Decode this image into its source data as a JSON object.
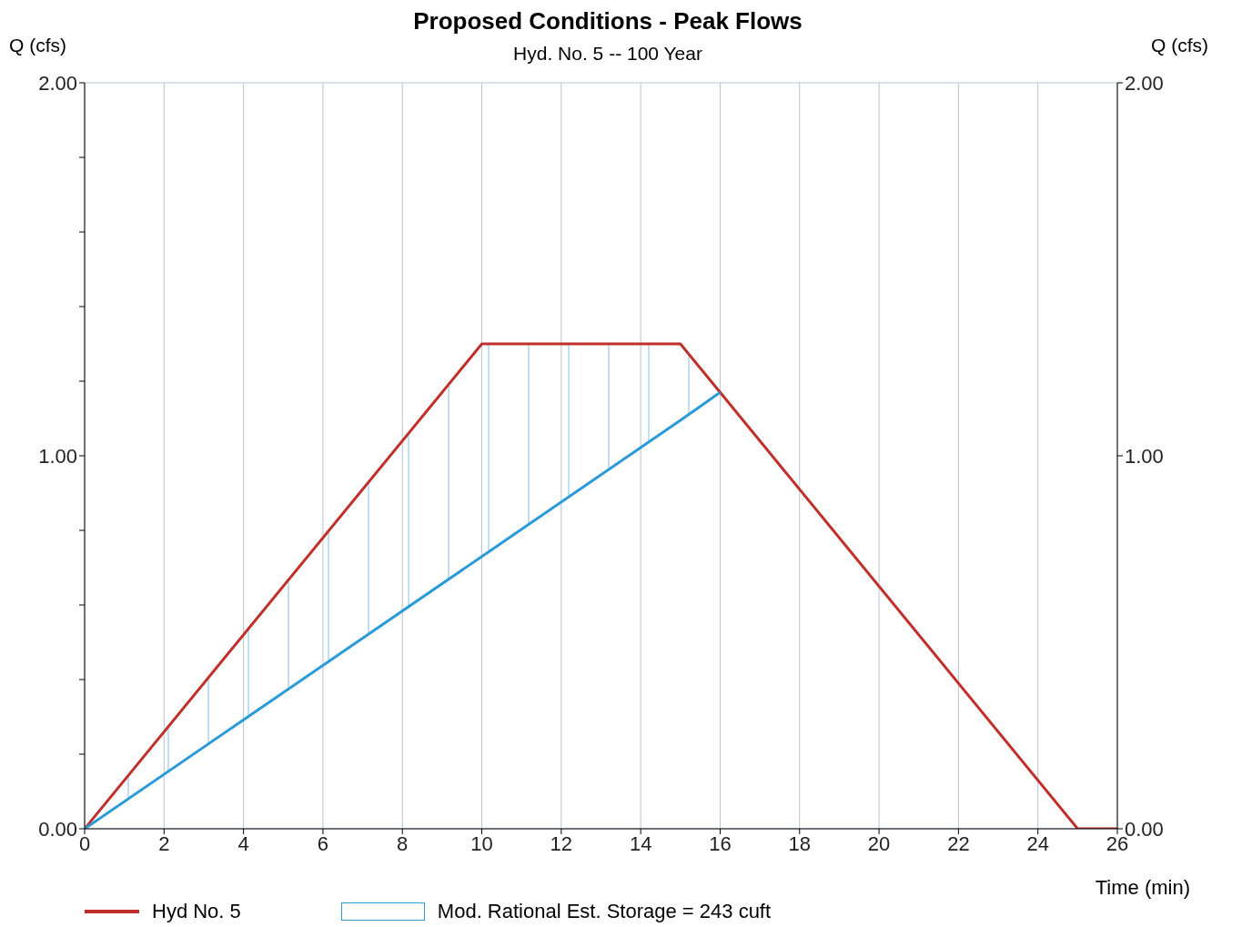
{
  "chart_data": {
    "type": "line",
    "title": "Proposed Conditions - Peak Flows",
    "subtitle": "Hyd. No. 5 -- 100 Year",
    "xlabel": "Time (min)",
    "ylabel": "Q (cfs)",
    "y2label": "Q (cfs)",
    "xlim": [
      0,
      26
    ],
    "xticks": [
      0,
      2,
      4,
      6,
      8,
      10,
      12,
      14,
      16,
      18,
      20,
      22,
      24,
      26
    ],
    "ylim": [
      0,
      2
    ],
    "yticks": [
      {
        "value": 0,
        "label": "0.00"
      },
      {
        "value": 0.2,
        "label": null
      },
      {
        "value": 0.4,
        "label": null
      },
      {
        "value": 0.6,
        "label": null
      },
      {
        "value": 0.8,
        "label": null
      },
      {
        "value": 1,
        "label": "1.00"
      },
      {
        "value": 1.2,
        "label": null
      },
      {
        "value": 1.4,
        "label": null
      },
      {
        "value": 1.6,
        "label": null
      },
      {
        "value": 1.8,
        "label": null
      },
      {
        "value": 2,
        "label": "2.00"
      }
    ],
    "y2lim": [
      0,
      2
    ],
    "y2ticks": [
      {
        "value": 0,
        "label": "0.00"
      },
      {
        "value": 1,
        "label": "1.00"
      },
      {
        "value": 2,
        "label": "2.00"
      }
    ],
    "grid": true,
    "legend": "bottom",
    "marker": "none",
    "line_style": "solid",
    "series": [
      {
        "name": "Hyd No. 5",
        "color": "#c0302b",
        "x": [
          0,
          10,
          15,
          16,
          25,
          26
        ],
        "values": [
          0,
          1.3,
          1.3,
          1.17,
          0,
          0
        ]
      },
      {
        "name": "Mod. Rational Est. Storage = 243 cuft",
        "color": "#2b9ad8",
        "x": [
          0,
          10,
          15,
          16
        ],
        "values": [
          0,
          0.73,
          1.095,
          1.17
        ],
        "lower": [
          0,
          0.73,
          1.095,
          1.17
        ],
        "upper": [
          0,
          1.3,
          1.3,
          1.17
        ]
      }
    ]
  }
}
